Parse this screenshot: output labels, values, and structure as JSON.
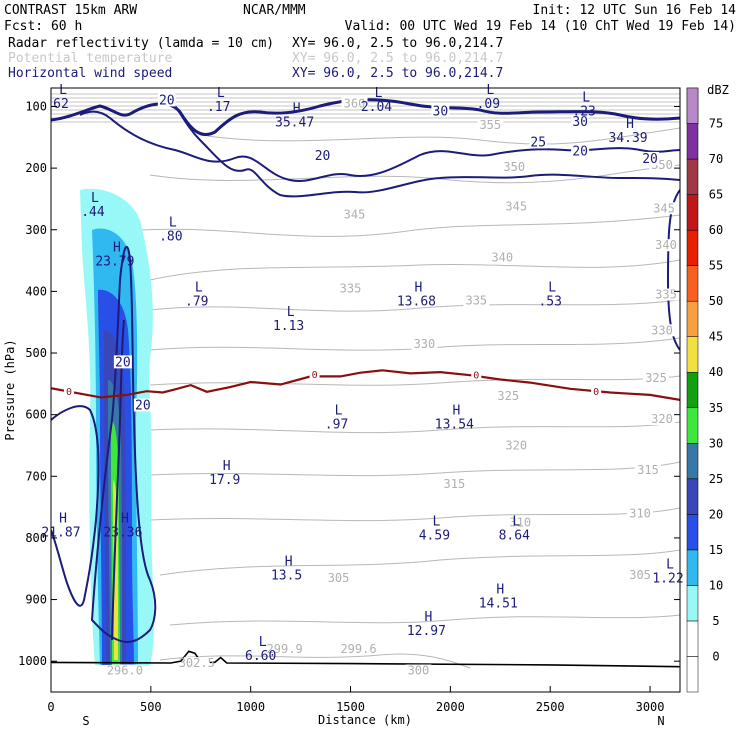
{
  "header": {
    "line1_left": "CONTRAST 15km ARW",
    "line1_mid": "NCAR/MMM",
    "line1_right": "Init: 12 UTC Sun 16 Feb 14",
    "line2_left": "Fcst:    60 h",
    "line2_right": "Valid: 00 UTC Wed 19 Feb 14 (10 ChT Wed 19 Feb 14)",
    "fields": [
      {
        "name": "Radar reflectivity (lamda = 10 cm)",
        "xy": "XY=  96.0,  2.5 to  96.0,214.7",
        "color": "#000000"
      },
      {
        "name": "Potential temperature",
        "xy": "XY=  96.0,  2.5 to  96.0,214.7",
        "color": "#c8c8c8"
      },
      {
        "name": "Horizontal wind speed",
        "xy": "XY=  96.0,  2.5 to  96.0,214.7",
        "color": "#1c1c7a"
      }
    ]
  },
  "colorbar": {
    "unit": "dBZ",
    "levels": [
      0,
      5,
      10,
      15,
      20,
      25,
      30,
      35,
      40,
      45,
      50,
      55,
      60,
      65,
      70,
      75
    ],
    "colors": [
      "#ffffff",
      "#98f8f8",
      "#30b8f0",
      "#2850e8",
      "#3848b8",
      "#3878a8",
      "#3ce83c",
      "#10a010",
      "#f0e040",
      "#f8a040",
      "#f86020",
      "#e82000",
      "#c01818",
      "#a03848",
      "#8030a0",
      "#b888c8"
    ]
  },
  "chart_data": {
    "type": "contour",
    "xlabel": "Distance (km)",
    "ylabel": "Pressure (hPa)",
    "xlim": [
      0,
      3150
    ],
    "ylim": [
      1050,
      70
    ],
    "xticks": [
      0,
      500,
      1000,
      1500,
      2000,
      2500,
      3000
    ],
    "yticks": [
      100,
      200,
      300,
      400,
      500,
      600,
      700,
      800,
      900,
      1000
    ],
    "x_end_labels": {
      "left": "S",
      "right": "N"
    },
    "wind_labels": [
      {
        "text": "20",
        "x": 580,
        "p": 95
      },
      {
        "text": "30",
        "x": 1950,
        "p": 113
      },
      {
        "text": "30",
        "x": 2650,
        "p": 130
      },
      {
        "text": "25",
        "x": 2440,
        "p": 163
      },
      {
        "text": "20",
        "x": 1360,
        "p": 185
      },
      {
        "text": "20",
        "x": 2650,
        "p": 178
      },
      {
        "text": "20",
        "x": 3000,
        "p": 190
      },
      {
        "text": "20",
        "x": 360,
        "p": 520
      },
      {
        "text": "20",
        "x": 460,
        "p": 590
      }
    ],
    "hl_labels": [
      {
        "mark": "L",
        "value": "62",
        "x": 60,
        "p": 80
      },
      {
        "mark": "L",
        "value": ".17",
        "x": 850,
        "p": 85
      },
      {
        "mark": "L",
        "value": "2.04",
        "x": 1640,
        "p": 85
      },
      {
        "mark": "L",
        "value": ".09",
        "x": 2200,
        "p": 80
      },
      {
        "mark": "L",
        "value": ".23",
        "x": 2680,
        "p": 92
      },
      {
        "mark": "H",
        "value": "35.47",
        "x": 1230,
        "p": 110
      },
      {
        "mark": "H",
        "value": "34.39",
        "x": 2900,
        "p": 135
      },
      {
        "mark": "L",
        "value": ".44",
        "x": 220,
        "p": 255
      },
      {
        "mark": "L",
        "value": ".80",
        "x": 610,
        "p": 295
      },
      {
        "mark": "H",
        "value": "23.79",
        "x": 330,
        "p": 335
      },
      {
        "mark": "L",
        "value": ".79",
        "x": 740,
        "p": 400
      },
      {
        "mark": "H",
        "value": "13.68",
        "x": 1840,
        "p": 400
      },
      {
        "mark": "L",
        "value": ".53",
        "x": 2510,
        "p": 400
      },
      {
        "mark": "L",
        "value": "1.13",
        "x": 1200,
        "p": 440
      },
      {
        "mark": "L",
        "value": ".97",
        "x": 1440,
        "p": 600
      },
      {
        "mark": "H",
        "value": "13.54",
        "x": 2030,
        "p": 600
      },
      {
        "mark": "H",
        "value": "17.9",
        "x": 880,
        "p": 690
      },
      {
        "mark": "H",
        "value": "21.87",
        "x": 60,
        "p": 775
      },
      {
        "mark": "H",
        "value": "23.36",
        "x": 370,
        "p": 775
      },
      {
        "mark": "L",
        "value": "4.59",
        "x": 1930,
        "p": 780
      },
      {
        "mark": "L",
        "value": "8.64",
        "x": 2330,
        "p": 780
      },
      {
        "mark": "H",
        "value": "13.5",
        "x": 1190,
        "p": 845
      },
      {
        "mark": "L",
        "value": "1.22",
        "x": 3100,
        "p": 850
      },
      {
        "mark": "H",
        "value": "14.51",
        "x": 2250,
        "p": 890
      },
      {
        "mark": "H",
        "value": "12.97",
        "x": 1890,
        "p": 935
      },
      {
        "mark": "L",
        "value": "6.60",
        "x": 1060,
        "p": 975
      }
    ],
    "theta_labels": [
      {
        "text": "360",
        "x": 1520,
        "p": 100
      },
      {
        "text": "355",
        "x": 2200,
        "p": 135
      },
      {
        "text": "350",
        "x": 2320,
        "p": 203
      },
      {
        "text": "350",
        "x": 3060,
        "p": 200
      },
      {
        "text": "345",
        "x": 1520,
        "p": 280
      },
      {
        "text": "345",
        "x": 2330,
        "p": 267
      },
      {
        "text": "345",
        "x": 3070,
        "p": 270
      },
      {
        "text": "340",
        "x": 2260,
        "p": 350
      },
      {
        "text": "340",
        "x": 3080,
        "p": 330
      },
      {
        "text": "335",
        "x": 1500,
        "p": 400
      },
      {
        "text": "335",
        "x": 2130,
        "p": 420
      },
      {
        "text": "335",
        "x": 3080,
        "p": 410
      },
      {
        "text": "330",
        "x": 1870,
        "p": 490
      },
      {
        "text": "330",
        "x": 3060,
        "p": 468
      },
      {
        "text": "325",
        "x": 2290,
        "p": 575
      },
      {
        "text": "325",
        "x": 3030,
        "p": 545
      },
      {
        "text": "320",
        "x": 2330,
        "p": 655
      },
      {
        "text": "320",
        "x": 3060,
        "p": 612
      },
      {
        "text": "315",
        "x": 2020,
        "p": 717
      },
      {
        "text": "315",
        "x": 2990,
        "p": 695
      },
      {
        "text": "310",
        "x": 2350,
        "p": 780
      },
      {
        "text": "310",
        "x": 2950,
        "p": 765
      },
      {
        "text": "305",
        "x": 1440,
        "p": 870
      },
      {
        "text": "305",
        "x": 2950,
        "p": 865
      },
      {
        "text": "300",
        "x": 1840,
        "p": 1020
      },
      {
        "text": "299.9",
        "x": 1170,
        "p": 985
      },
      {
        "text": "299.6",
        "x": 1540,
        "p": 985
      },
      {
        "text": "302.5",
        "x": 730,
        "p": 1008
      },
      {
        "text": "296.0",
        "x": 370,
        "p": 1020
      }
    ],
    "freezing_labels": [
      {
        "text": "0",
        "x": 90,
        "p": 565
      },
      {
        "text": "0",
        "x": 1320,
        "p": 537
      },
      {
        "text": "0",
        "x": 2130,
        "p": 538
      },
      {
        "text": "0",
        "x": 2730,
        "p": 565
      }
    ],
    "terrain_p": [
      [
        0,
        1002
      ],
      [
        600,
        1003
      ],
      [
        650,
        1000
      ],
      [
        690,
        984
      ],
      [
        720,
        987
      ],
      [
        750,
        1001
      ],
      [
        820,
        1002
      ],
      [
        850,
        994
      ],
      [
        880,
        1003
      ],
      [
        1500,
        1004
      ],
      [
        2500,
        1006
      ],
      [
        3150,
        1009
      ]
    ],
    "freezing_line": [
      [
        0,
        557
      ],
      [
        130,
        565
      ],
      [
        250,
        572
      ],
      [
        380,
        568
      ],
      [
        480,
        562
      ],
      [
        560,
        564
      ],
      [
        620,
        559
      ],
      [
        700,
        552
      ],
      [
        780,
        563
      ],
      [
        900,
        555
      ],
      [
        1000,
        547
      ],
      [
        1150,
        551
      ],
      [
        1300,
        538
      ],
      [
        1450,
        538
      ],
      [
        1550,
        532
      ],
      [
        1660,
        528
      ],
      [
        1800,
        533
      ],
      [
        1950,
        531
      ],
      [
        2100,
        536
      ],
      [
        2250,
        543
      ],
      [
        2400,
        548
      ],
      [
        2600,
        558
      ],
      [
        2800,
        564
      ],
      [
        3000,
        568
      ],
      [
        3150,
        576
      ]
    ]
  }
}
